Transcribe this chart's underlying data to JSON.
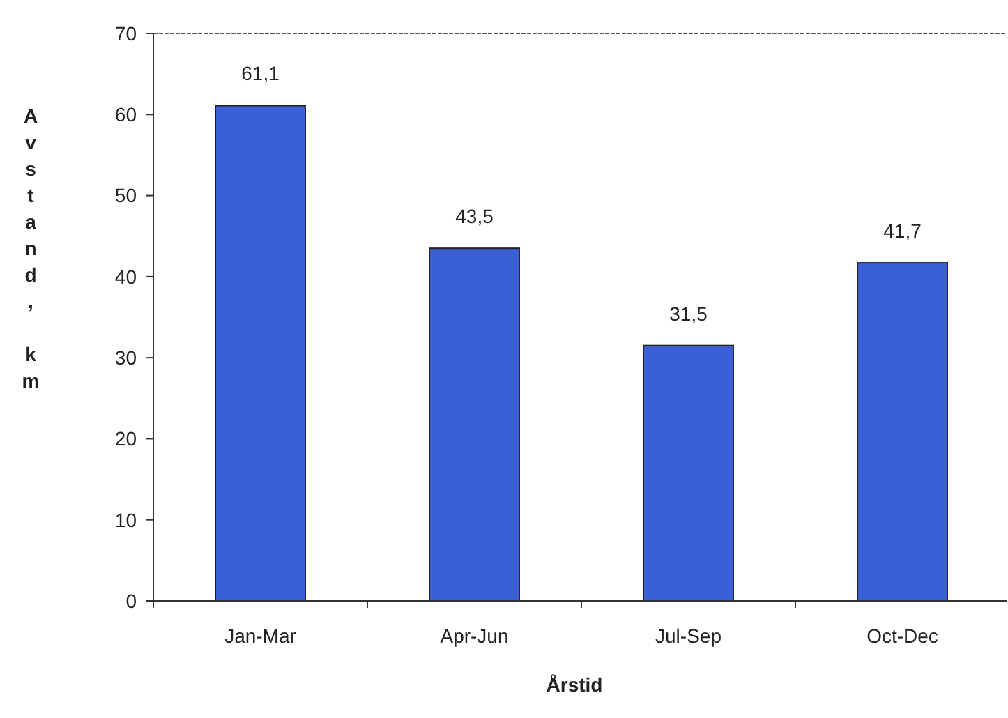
{
  "chart_data": {
    "type": "bar",
    "xlabel": "Årstid",
    "ylabel": "Avstand, km",
    "categories": [
      "Jan-Mar",
      "Apr-Jun",
      "Jul-Sep",
      "Oct-Dec"
    ],
    "values": [
      61.1,
      43.5,
      31.5,
      41.7
    ],
    "value_labels": [
      "61,1",
      "43,5",
      "31,5",
      "41,7"
    ],
    "color": "#3b5fd6",
    "ylim": [
      0,
      70
    ],
    "yticks": [
      0,
      10,
      20,
      30,
      40,
      50,
      60,
      70
    ]
  }
}
